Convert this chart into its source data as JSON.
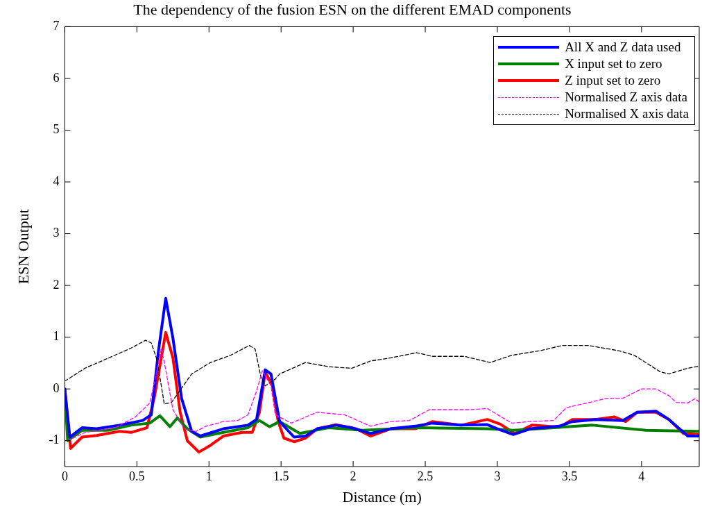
{
  "chart_data": {
    "type": "line",
    "title": "The dependency of the fusion ESN on the different EMAD components",
    "xlabel": "Distance (m)",
    "ylabel": "ESN Output",
    "xlim": [
      0,
      4.4
    ],
    "ylim": [
      -1.5,
      7
    ],
    "xticks": [
      0,
      0.5,
      1,
      1.5,
      2,
      2.5,
      3,
      3.5,
      4
    ],
    "yticks": [
      -1,
      0,
      1,
      2,
      3,
      4,
      5,
      6,
      7
    ],
    "grid": false,
    "legend": "top right",
    "marker": "none",
    "series": [
      {
        "name": "All X and Z data used",
        "color": "#0000ff",
        "line_style": "solid",
        "x": [
          0,
          0.035,
          0.12,
          0.22,
          0.38,
          0.54,
          0.6,
          0.65,
          0.7,
          0.75,
          0.81,
          0.88,
          0.94,
          1.1,
          1.27,
          1.33,
          1.39,
          1.43,
          1.49,
          1.59,
          1.67,
          1.75,
          1.88,
          1.99,
          2.12,
          2.26,
          2.43,
          2.55,
          2.75,
          2.93,
          3.0,
          3.11,
          3.23,
          3.43,
          3.52,
          3.68,
          3.87,
          3.97,
          4.1,
          4.19,
          4.32,
          4.4
        ],
        "values": [
          0,
          -0.93,
          -0.75,
          -0.77,
          -0.7,
          -0.61,
          -0.5,
          0.74,
          1.75,
          0.98,
          -0.18,
          -0.82,
          -0.91,
          -0.77,
          -0.7,
          -0.59,
          0.37,
          0.29,
          -0.63,
          -0.93,
          -0.91,
          -0.77,
          -0.7,
          -0.75,
          -0.86,
          -0.77,
          -0.72,
          -0.66,
          -0.7,
          -0.69,
          -0.77,
          -0.88,
          -0.77,
          -0.72,
          -0.63,
          -0.59,
          -0.61,
          -0.45,
          -0.43,
          -0.59,
          -0.91,
          -0.91
        ]
      },
      {
        "name": "X input set to zero",
        "color": "#008000",
        "line_style": "solid",
        "x": [
          0,
          0.02,
          0.12,
          0.3,
          0.46,
          0.59,
          0.66,
          0.73,
          0.78,
          0.85,
          0.94,
          1.1,
          1.27,
          1.35,
          1.42,
          1.49,
          1.63,
          1.83,
          2.07,
          2.43,
          2.93,
          3.11,
          3.66,
          4.03,
          4.4
        ],
        "values": [
          0,
          -1.0,
          -0.8,
          -0.8,
          -0.7,
          -0.66,
          -0.52,
          -0.73,
          -0.56,
          -0.77,
          -0.93,
          -0.84,
          -0.75,
          -0.61,
          -0.73,
          -0.63,
          -0.86,
          -0.75,
          -0.8,
          -0.75,
          -0.77,
          -0.8,
          -0.7,
          -0.8,
          -0.82
        ]
      },
      {
        "name": "Z input set to zero",
        "color": "#ff0000",
        "line_style": "solid",
        "x": [
          0,
          0.04,
          0.12,
          0.22,
          0.38,
          0.46,
          0.57,
          0.62,
          0.7,
          0.75,
          0.8,
          0.85,
          0.93,
          1.01,
          1.1,
          1.23,
          1.3,
          1.35,
          1.39,
          1.44,
          1.48,
          1.52,
          1.59,
          1.67,
          1.75,
          1.88,
          2.02,
          2.12,
          2.26,
          2.43,
          2.55,
          2.75,
          2.93,
          3.02,
          3.12,
          3.24,
          3.43,
          3.52,
          3.68,
          3.81,
          3.89,
          3.97,
          4.1,
          4.19,
          4.29,
          4.4
        ],
        "values": [
          0,
          -1.15,
          -0.93,
          -0.9,
          -0.82,
          -0.84,
          -0.75,
          -0.18,
          1.09,
          0.6,
          -0.45,
          -1.0,
          -1.22,
          -1.09,
          -0.91,
          -0.84,
          -0.84,
          -0.45,
          0.33,
          0.06,
          -0.63,
          -0.95,
          -1.02,
          -0.95,
          -0.77,
          -0.69,
          -0.77,
          -0.91,
          -0.77,
          -0.77,
          -0.63,
          -0.7,
          -0.59,
          -0.68,
          -0.86,
          -0.7,
          -0.74,
          -0.59,
          -0.59,
          -0.54,
          -0.63,
          -0.45,
          -0.45,
          -0.59,
          -0.86,
          -0.88
        ]
      },
      {
        "name": "Normalised Z axis data",
        "color": "#ff00ff",
        "line_style": "dashed",
        "x": [
          0.02,
          0.14,
          0.35,
          0.49,
          0.59,
          0.64,
          0.67,
          0.7,
          0.75,
          0.83,
          0.91,
          0.98,
          1.1,
          1.2,
          1.27,
          1.33,
          1.37,
          1.43,
          1.46,
          1.57,
          1.75,
          1.94,
          2.12,
          2.26,
          2.39,
          2.53,
          2.8,
          2.93,
          3.1,
          3.23,
          3.39,
          3.48,
          3.64,
          3.76,
          3.87,
          4.0,
          4.1,
          4.19,
          4.24,
          4.32,
          4.37,
          4.4
        ],
        "values": [
          -1.0,
          -0.84,
          -0.75,
          -0.54,
          -0.27,
          0.37,
          0.79,
          0.37,
          -0.4,
          -0.77,
          -0.82,
          -0.72,
          -0.63,
          -0.61,
          -0.5,
          -0.04,
          0.35,
          0.06,
          -0.5,
          -0.66,
          -0.45,
          -0.5,
          -0.72,
          -0.63,
          -0.61,
          -0.4,
          -0.4,
          -0.38,
          -0.66,
          -0.63,
          -0.61,
          -0.36,
          -0.26,
          -0.18,
          -0.18,
          0,
          0,
          -0.13,
          -0.26,
          -0.27,
          -0.19,
          -0.25
        ]
      },
      {
        "name": "Normalised X axis data",
        "color": "#000000",
        "line_style": "dashed",
        "x": [
          0,
          0.14,
          0.33,
          0.46,
          0.56,
          0.6,
          0.64,
          0.69,
          0.74,
          0.88,
          1.01,
          1.15,
          1.28,
          1.32,
          1.36,
          1.39,
          1.46,
          1.49,
          1.67,
          1.83,
          1.99,
          2.12,
          2.26,
          2.44,
          2.55,
          2.77,
          2.95,
          3.1,
          3.3,
          3.45,
          3.63,
          3.84,
          3.95,
          4.13,
          4.19,
          4.32,
          4.4
        ],
        "values": [
          0.15,
          0.4,
          0.63,
          0.79,
          0.94,
          0.89,
          0.56,
          -0.29,
          -0.26,
          0.29,
          0.51,
          0.65,
          0.84,
          0.77,
          0.23,
          0.06,
          0.19,
          0.29,
          0.51,
          0.43,
          0.4,
          0.54,
          0.6,
          0.7,
          0.63,
          0.63,
          0.51,
          0.65,
          0.74,
          0.84,
          0.84,
          0.74,
          0.65,
          0.33,
          0.29,
          0.4,
          0.44
        ]
      }
    ]
  }
}
